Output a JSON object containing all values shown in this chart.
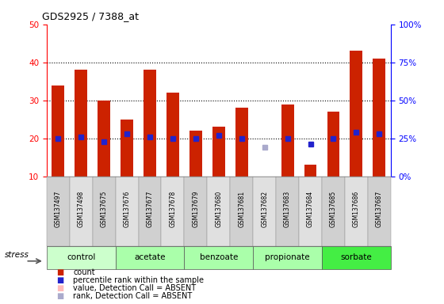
{
  "title": "GDS2925 / 7388_at",
  "samples": [
    "GSM137497",
    "GSM137498",
    "GSM137675",
    "GSM137676",
    "GSM137677",
    "GSM137678",
    "GSM137679",
    "GSM137680",
    "GSM137681",
    "GSM137682",
    "GSM137683",
    "GSM137684",
    "GSM137685",
    "GSM137686",
    "GSM137687"
  ],
  "count_values": [
    34,
    38,
    30,
    25,
    38,
    32,
    22,
    23,
    28,
    10,
    29,
    13,
    27,
    43,
    41
  ],
  "rank_values": [
    25,
    26,
    23,
    28,
    26,
    25,
    25,
    27,
    25,
    null,
    25,
    21,
    25,
    29,
    28
  ],
  "rank_absent": [
    null,
    null,
    null,
    null,
    null,
    null,
    null,
    null,
    null,
    19,
    null,
    null,
    null,
    null,
    null
  ],
  "detection_absent": [
    false,
    false,
    false,
    false,
    false,
    false,
    false,
    false,
    false,
    true,
    false,
    false,
    false,
    false,
    false
  ],
  "groups": [
    {
      "name": "control",
      "indices": [
        0,
        1,
        2
      ]
    },
    {
      "name": "acetate",
      "indices": [
        3,
        4,
        5
      ]
    },
    {
      "name": "benzoate",
      "indices": [
        6,
        7,
        8
      ]
    },
    {
      "name": "propionate",
      "indices": [
        9,
        10,
        11
      ]
    },
    {
      "name": "sorbate",
      "indices": [
        12,
        13,
        14
      ]
    }
  ],
  "group_colors": {
    "control": "#ccffcc",
    "acetate": "#aaffaa",
    "benzoate": "#aaffaa",
    "propionate": "#aaffaa",
    "sorbate": "#44ee44"
  },
  "ylim_left": [
    10,
    50
  ],
  "ylim_right": [
    0,
    100
  ],
  "bar_color": "#cc2200",
  "rank_color": "#2222cc",
  "absent_value_color": "#ffbbbb",
  "absent_rank_color": "#aaaacc",
  "bar_width": 0.55
}
